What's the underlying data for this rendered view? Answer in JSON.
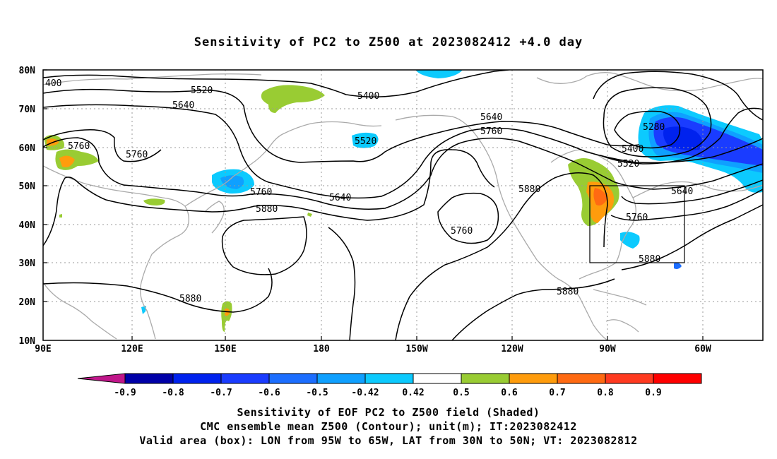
{
  "title": "Sensitivity of PC2 to Z500 at 2023082412 +4.0 day",
  "map": {
    "lat_labels": [
      "80N",
      "70N",
      "60N",
      "50N",
      "40N",
      "30N",
      "20N",
      "10N"
    ],
    "lon_labels": [
      "90E",
      "120E",
      "150E",
      "180",
      "150W",
      "120W",
      "90W",
      "60W"
    ],
    "contour_labels": [
      "400",
      "5520",
      "5640",
      "5400",
      "5640",
      "5760",
      "5280",
      "5760",
      "5520",
      "5400",
      "5760",
      "5520",
      "5880",
      "5760",
      "5640",
      "5640",
      "5880",
      "5760",
      "5760",
      "5880",
      "5880",
      "5880"
    ],
    "valid_box": {
      "lon_from": "95W",
      "lon_to": "65W",
      "lat_from": "30N",
      "lat_to": "50N"
    }
  },
  "colorbar": {
    "labels": [
      "-0.9",
      "-0.8",
      "-0.7",
      "-0.6",
      "-0.5",
      "-0.42",
      "0.42",
      "0.5",
      "0.6",
      "0.7",
      "0.8",
      "0.9"
    ],
    "colors": {
      "under": "#c0168a",
      "bins": [
        "#0000a8",
        "#0022ee",
        "#1a3cff",
        "#1c6eff",
        "#0fa0ff",
        "#0ccafe",
        "#ffffff",
        "#99cc33",
        "#ff9c0c",
        "#ff6a12",
        "#ff3a20",
        "#ff0000"
      ],
      "over": "#f7a0c8"
    }
  },
  "colors": {
    "land": "#aaaaaa",
    "contour": "#000000",
    "grid": "#9a9a9a"
  },
  "footer": {
    "line1": "Sensitivity of EOF PC2 to Z500 field (Shaded)",
    "line2": "CMC ensemble mean Z500 (Contour); unit(m); IT:2023082412",
    "line3": "Valid area (box): LON from 95W to 65W, LAT from 30N to 50N; VT: 2023082812"
  }
}
